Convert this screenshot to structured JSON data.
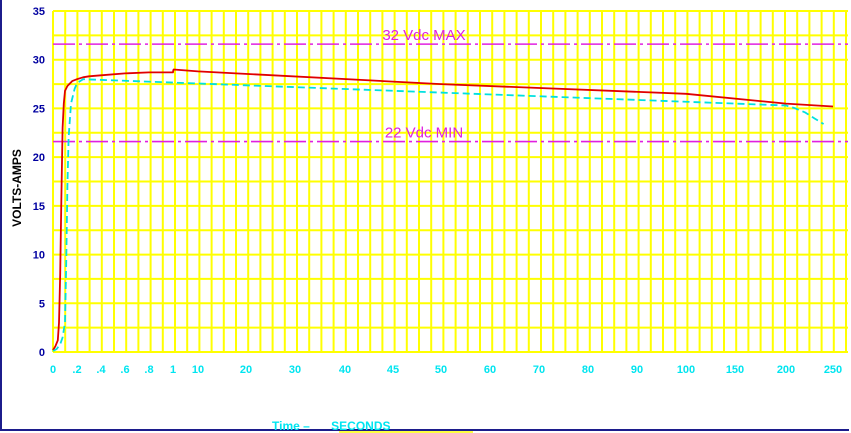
{
  "chart_data": {
    "type": "line",
    "ylabel": "VOLTS-AMPS",
    "xlabel_prefix": "Time  –",
    "xlabel_unit": "SECONDS",
    "x_tick_labels": [
      "0",
      ".2",
      ".4",
      ".6",
      ".8",
      "1",
      "10",
      "20",
      "30",
      "40",
      "45",
      "50",
      "60",
      "70",
      "80",
      "90",
      "100",
      "150",
      "200",
      "250"
    ],
    "y_ticks": [
      0,
      5,
      10,
      15,
      20,
      25,
      30,
      35
    ],
    "ylim": [
      0,
      35
    ],
    "grid": true,
    "limits": [
      {
        "label": "32 Vdc MAX",
        "value": 31.6,
        "color": "#e020e0"
      },
      {
        "label": "22 Vdc MIN",
        "value": 21.6,
        "color": "#e020e0"
      }
    ],
    "series": [
      {
        "color": "#e00000",
        "style": "solid",
        "points": [
          [
            0,
            0.2
          ],
          [
            0.02,
            0.6
          ],
          [
            0.04,
            1.2
          ],
          [
            0.05,
            3.0
          ],
          [
            0.06,
            8.0
          ],
          [
            0.07,
            16.0
          ],
          [
            0.08,
            23.0
          ],
          [
            0.09,
            25.5
          ],
          [
            0.1,
            26.8
          ],
          [
            0.12,
            27.3
          ],
          [
            0.16,
            27.8
          ],
          [
            0.2,
            28.0
          ],
          [
            0.25,
            28.2
          ],
          [
            0.3,
            28.3
          ],
          [
            0.4,
            28.4
          ],
          [
            0.6,
            28.6
          ],
          [
            0.8,
            28.7
          ],
          [
            0.9,
            28.7
          ],
          [
            1,
            28.7
          ],
          [
            1.05,
            28.8
          ],
          [
            1.1,
            28.9
          ],
          [
            1.2,
            29.0
          ],
          [
            10,
            28.8
          ],
          [
            50,
            27.5
          ],
          [
            100,
            26.5
          ],
          [
            200,
            25.5
          ],
          [
            250,
            25.2
          ]
        ]
      },
      {
        "color": "#00e0e0",
        "style": "dashed",
        "points": [
          [
            0,
            0.1
          ],
          [
            0.03,
            0.3
          ],
          [
            0.06,
            0.8
          ],
          [
            0.08,
            1.5
          ],
          [
            0.1,
            3.0
          ],
          [
            0.11,
            9.0
          ],
          [
            0.12,
            17.0
          ],
          [
            0.13,
            22.0
          ],
          [
            0.15,
            25.5
          ],
          [
            0.18,
            27.0
          ],
          [
            0.2,
            27.6
          ],
          [
            0.25,
            28.0
          ],
          [
            200,
            25.3
          ],
          [
            210,
            25.0
          ],
          [
            220,
            24.6
          ],
          [
            230,
            24.0
          ],
          [
            240,
            23.4
          ]
        ]
      }
    ]
  }
}
